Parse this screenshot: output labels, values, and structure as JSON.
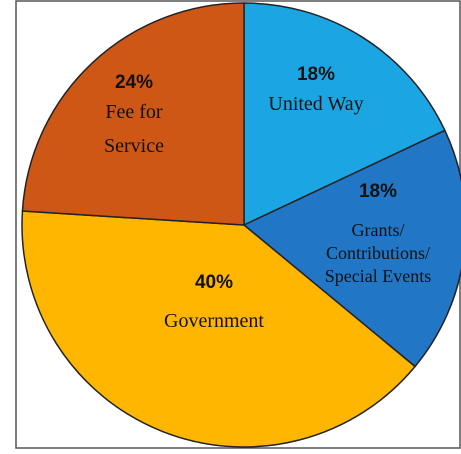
{
  "chart_data": {
    "type": "pie",
    "title": "",
    "slices": [
      {
        "percent_label": "18%",
        "label_lines": [
          "United Way"
        ],
        "value": 18,
        "color": "#1BA6E3"
      },
      {
        "percent_label": "18%",
        "label_lines": [
          "Grants/",
          "Contributions/",
          "Special Events"
        ],
        "value": 18,
        "color": "#2176C5"
      },
      {
        "percent_label": "40%",
        "label_lines": [
          "Government"
        ],
        "value": 40,
        "color": "#FEB600"
      },
      {
        "percent_label": "24%",
        "label_lines": [
          "Fee for",
          "Service"
        ],
        "value": 24,
        "color": "#CF5716"
      }
    ],
    "start_angle_deg": 0,
    "direction": "clockwise",
    "frame_color": "#555555"
  }
}
